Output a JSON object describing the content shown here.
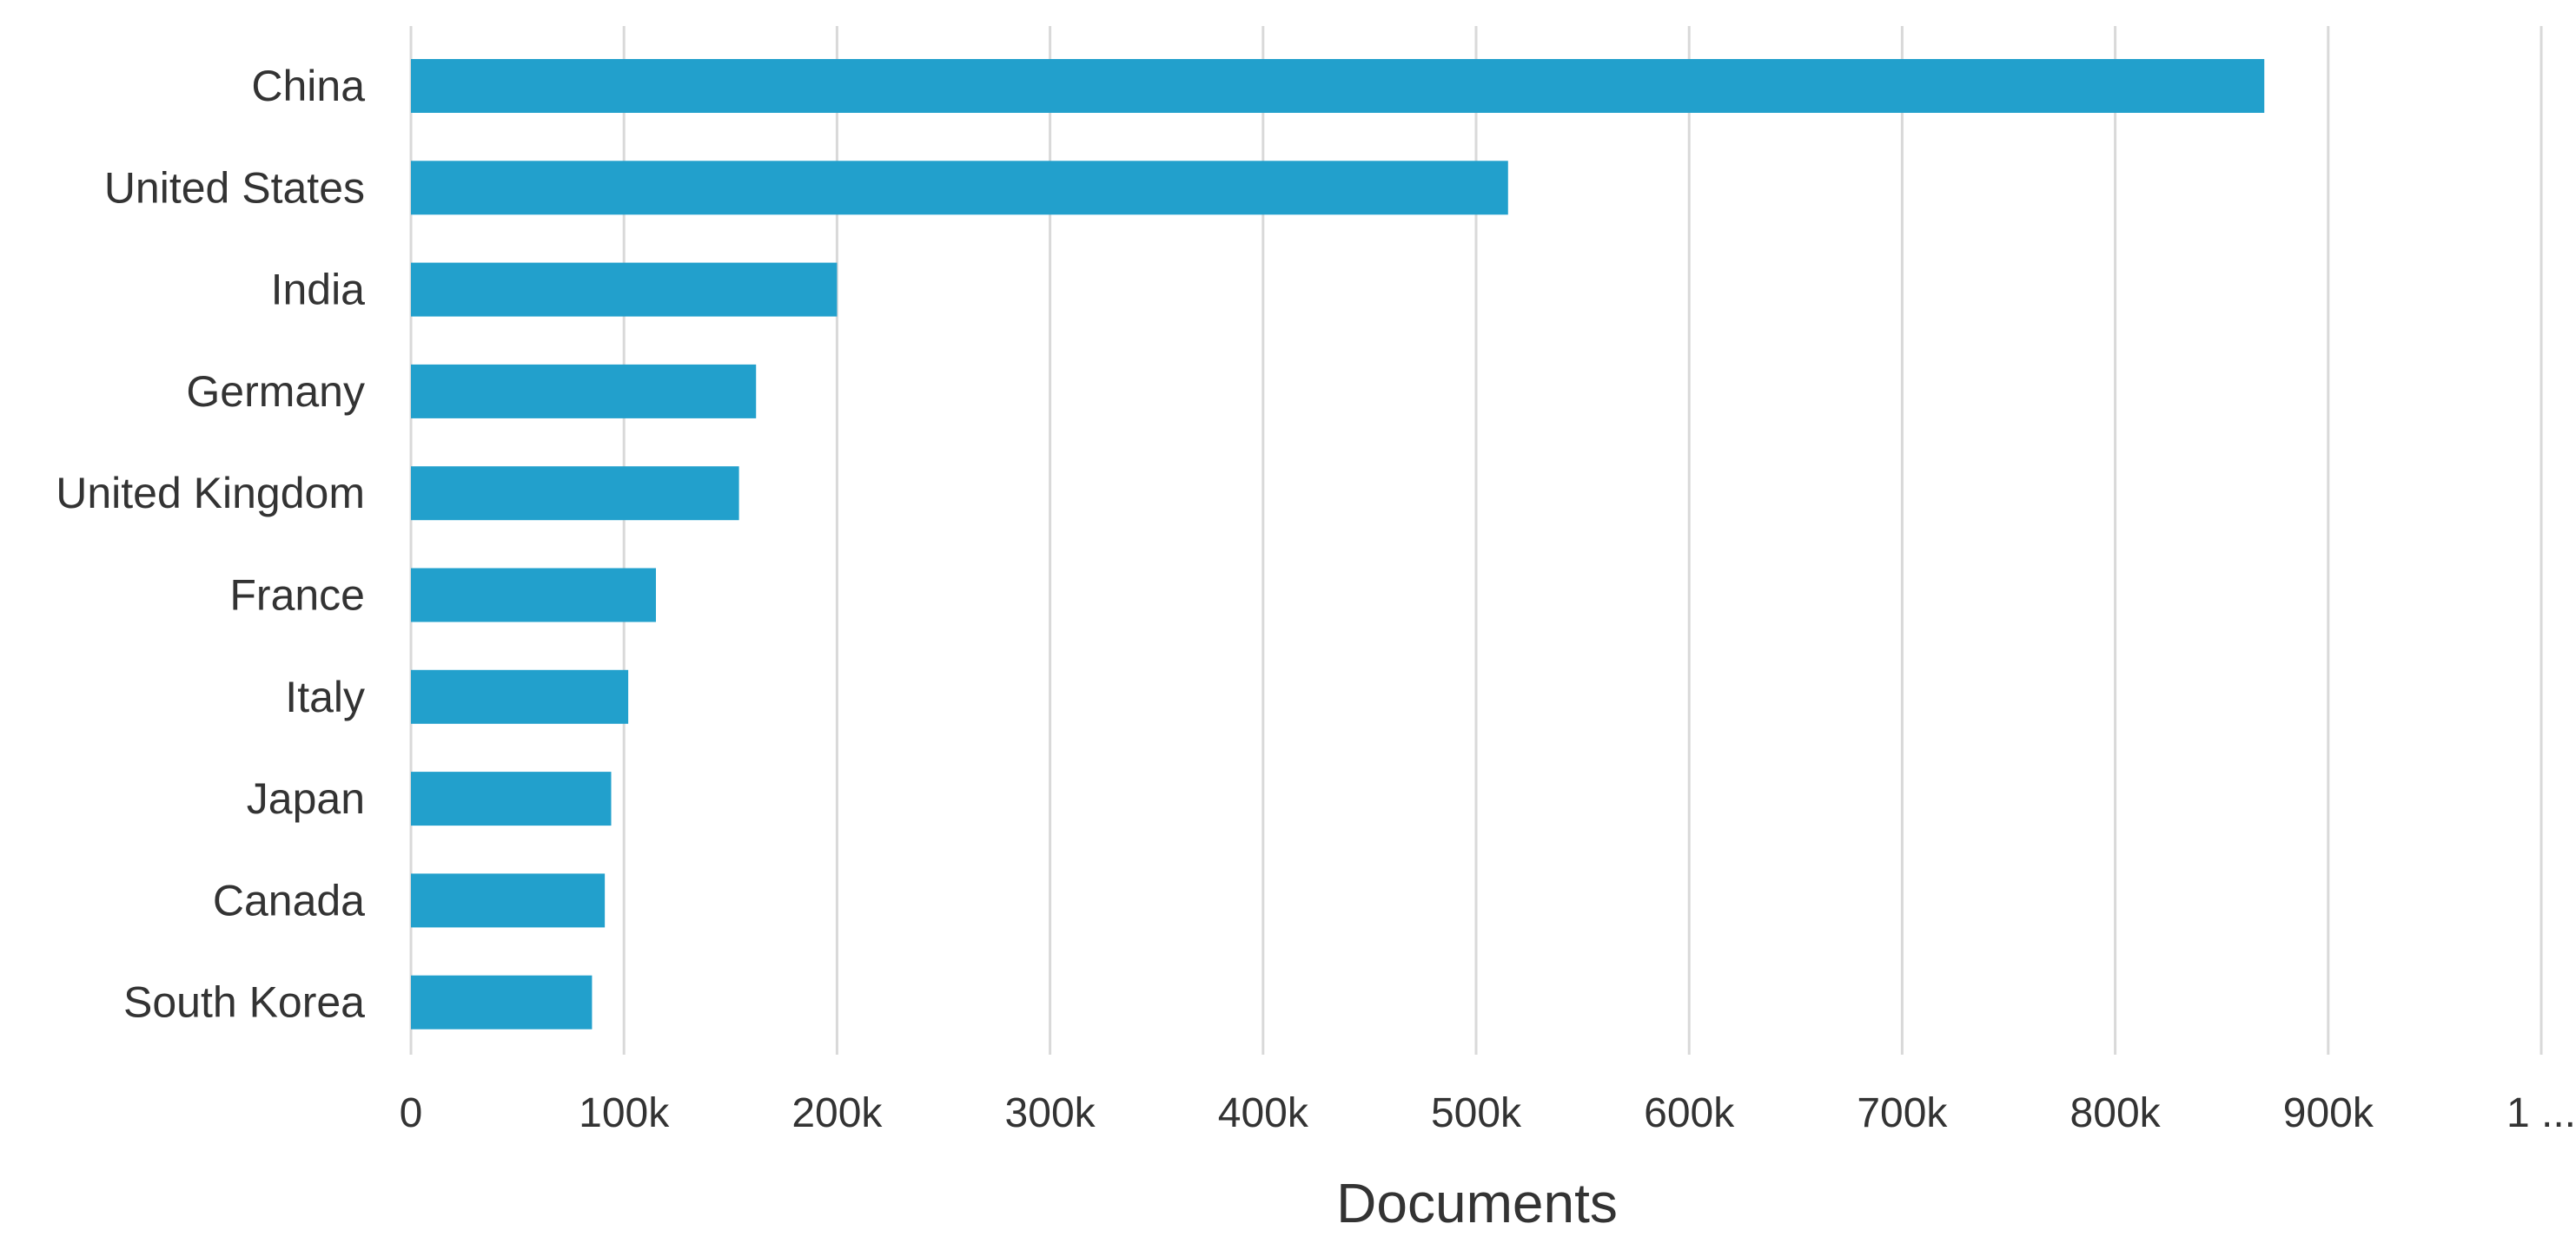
{
  "chart_data": {
    "type": "bar",
    "orientation": "horizontal",
    "categories": [
      "China",
      "United States",
      "India",
      "Germany",
      "United Kingdom",
      "France",
      "Italy",
      "Japan",
      "Canada",
      "South Korea"
    ],
    "values": [
      870000,
      515000,
      200000,
      162000,
      154000,
      115000,
      102000,
      94000,
      91000,
      85000
    ],
    "xlabel": "Documents",
    "ylabel": "",
    "xlim": [
      0,
      1000000
    ],
    "x_ticks": [
      "0",
      "100k",
      "200k",
      "300k",
      "400k",
      "500k",
      "600k",
      "700k",
      "800k",
      "900k",
      "1 ..."
    ],
    "grid": "vertical",
    "legend": "none",
    "colors": {
      "bar": "#22a0cc"
    }
  }
}
